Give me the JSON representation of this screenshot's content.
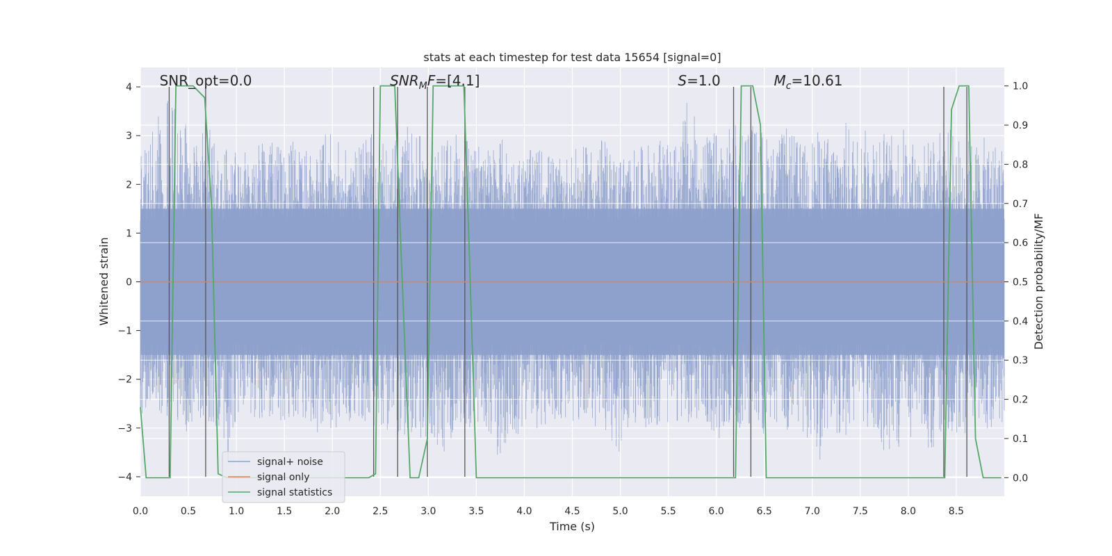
{
  "chart_data": {
    "type": "line",
    "title": "stats at each timestep for test data 15654 [signal=0]",
    "xlabel": "Time (s)",
    "ylabel": "Whitened strain",
    "y2label": "Detection probability/MF",
    "xlim": [
      0.0,
      9.0
    ],
    "ylim": [
      -4.4,
      4.4
    ],
    "y2lim": [
      -0.0473,
      1.0473
    ],
    "xticks": [
      0.0,
      0.5,
      1.0,
      1.5,
      2.0,
      2.5,
      3.0,
      3.5,
      4.0,
      4.5,
      5.0,
      5.5,
      6.0,
      6.5,
      7.0,
      7.5,
      8.0,
      8.5
    ],
    "xtick_labels": [
      "0.0",
      "0.5",
      "1.0",
      "1.5",
      "2.0",
      "2.5",
      "3.0",
      "3.5",
      "4.0",
      "4.5",
      "5.0",
      "5.5",
      "6.0",
      "6.5",
      "7.0",
      "7.5",
      "8.0",
      "8.5"
    ],
    "yticks": [
      -4,
      -3,
      -2,
      -1,
      0,
      1,
      2,
      3,
      4
    ],
    "ytick_labels": [
      "−4",
      "−3",
      "−2",
      "−1",
      "0",
      "1",
      "2",
      "3",
      "4"
    ],
    "y2ticks": [
      0.0,
      0.1,
      0.2,
      0.3,
      0.4,
      0.5,
      0.6,
      0.7,
      0.8,
      0.9,
      1.0
    ],
    "y2tick_labels": [
      "0.0",
      "0.1",
      "0.2",
      "0.3",
      "0.4",
      "0.5",
      "0.6",
      "0.7",
      "0.8",
      "0.9",
      "1.0"
    ],
    "grid": true,
    "legend_position": "lower-left",
    "colors": {
      "background": "#eaeaf2",
      "grid": "#ffffff",
      "noise": "#8da0cb",
      "signal": "#dd8452",
      "stats": "#55a868",
      "vline": "#555555"
    },
    "annotations": [
      {
        "parts": [
          {
            "t": "SNR_opt=0.0"
          }
        ],
        "x": 0.2,
        "y": 4.1
      },
      {
        "parts": [
          {
            "t": "SNR",
            "it": true
          },
          {
            "t": "M",
            "it": true,
            "sub": true
          },
          {
            "t": "F",
            "it": true
          },
          {
            "t": "=[4.1]"
          }
        ],
        "x": 2.6,
        "y": 4.1
      },
      {
        "parts": [
          {
            "t": "S",
            "it": true
          },
          {
            "t": "=1.0"
          }
        ],
        "x": 5.6,
        "y": 4.1
      },
      {
        "parts": [
          {
            "t": "M",
            "it": true
          },
          {
            "t": "c",
            "it": true,
            "sub": true
          },
          {
            "t": "=10.61"
          }
        ],
        "x": 6.6,
        "y": 4.1
      }
    ],
    "series": [
      {
        "name": "signal+ noise",
        "axis": "left",
        "style": "noise",
        "envelope_x": [
          0.0,
          0.15,
          0.3,
          0.45,
          0.6,
          0.75,
          0.9,
          1.05,
          1.2,
          1.35,
          1.5,
          1.65,
          1.8,
          1.95,
          2.1,
          2.25,
          2.4,
          2.55,
          2.7,
          2.85,
          3.0,
          3.15,
          3.3,
          3.45,
          3.6,
          3.75,
          3.9,
          4.05,
          4.2,
          4.35,
          4.5,
          4.65,
          4.8,
          4.95,
          5.1,
          5.25,
          5.4,
          5.55,
          5.7,
          5.85,
          6.0,
          6.15,
          6.3,
          6.45,
          6.6,
          6.75,
          6.9,
          7.05,
          7.2,
          7.35,
          7.5,
          7.65,
          7.8,
          7.95,
          8.1,
          8.25,
          8.4,
          8.55,
          8.7,
          8.85,
          9.0
        ],
        "envelope_upper": [
          2.6,
          3.2,
          4.0,
          3.3,
          3.0,
          3.4,
          2.9,
          2.6,
          2.8,
          2.9,
          2.7,
          3.0,
          2.6,
          3.1,
          2.8,
          2.7,
          3.1,
          2.9,
          3.3,
          3.2,
          3.0,
          2.8,
          3.2,
          2.9,
          2.8,
          3.0,
          2.6,
          2.7,
          2.8,
          2.5,
          2.7,
          2.8,
          3.0,
          2.6,
          2.7,
          2.8,
          3.0,
          2.7,
          3.8,
          3.0,
          3.1,
          3.2,
          3.4,
          3.2,
          2.9,
          3.2,
          2.8,
          3.1,
          3.0,
          3.3,
          3.0,
          3.4,
          3.0,
          3.2,
          2.8,
          3.0,
          3.2,
          3.0,
          2.9,
          3.0,
          2.8
        ],
        "envelope_lower": [
          -2.8,
          -2.6,
          -2.9,
          -3.3,
          -2.8,
          -3.0,
          -3.8,
          -2.9,
          -2.8,
          -3.0,
          -2.9,
          -2.8,
          -3.2,
          -3.0,
          -3.0,
          -2.8,
          -3.0,
          -3.1,
          -3.3,
          -3.3,
          -3.2,
          -3.6,
          -3.2,
          -3.0,
          -3.0,
          -3.7,
          -3.3,
          -3.1,
          -3.0,
          -2.9,
          -2.9,
          -3.0,
          -3.0,
          -3.9,
          -2.9,
          -3.0,
          -3.0,
          -2.9,
          -2.9,
          -3.0,
          -3.4,
          -2.9,
          -3.1,
          -3.2,
          -3.0,
          -3.3,
          -3.1,
          -3.9,
          -3.1,
          -3.2,
          -3.1,
          -3.2,
          -3.9,
          -3.3,
          -3.1,
          -3.6,
          -3.1,
          -3.2,
          -3.0,
          -3.1,
          -3.0
        ]
      },
      {
        "name": "signal only",
        "axis": "left",
        "style": "signal",
        "x": [
          0.0,
          9.0
        ],
        "y": [
          0.0,
          0.0
        ]
      },
      {
        "name": "signal statistics",
        "axis": "right",
        "style": "stats",
        "x": [
          0.0,
          0.06,
          0.12,
          0.31,
          0.37,
          0.55,
          0.67,
          0.74,
          0.81,
          0.9,
          2.38,
          2.45,
          2.5,
          2.65,
          2.72,
          2.81,
          2.9,
          2.99,
          3.05,
          3.37,
          3.43,
          3.5,
          6.2,
          6.26,
          6.38,
          6.46,
          6.52,
          8.38,
          8.45,
          8.53,
          8.63,
          8.7,
          8.78,
          8.97
        ],
        "y": [
          0.18,
          0.0,
          0.0,
          0.0,
          1.0,
          1.0,
          0.97,
          0.7,
          0.01,
          0.0,
          0.0,
          0.01,
          1.0,
          1.0,
          0.55,
          0.0,
          0.0,
          0.1,
          1.0,
          1.0,
          0.55,
          0.0,
          0.0,
          1.0,
          1.0,
          0.9,
          0.0,
          0.0,
          0.94,
          1.0,
          1.0,
          0.1,
          0.0,
          0.0
        ]
      }
    ],
    "vlines": [
      0.3,
      0.68,
      2.43,
      2.68,
      2.99,
      3.38,
      6.18,
      6.36,
      8.37,
      8.61
    ]
  }
}
